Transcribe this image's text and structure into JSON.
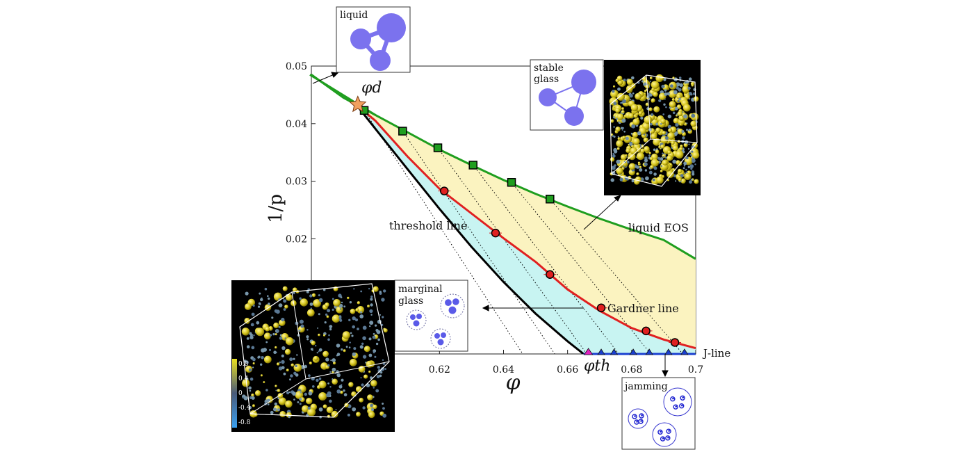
{
  "chart_data": {
    "type": "scatter",
    "title": "",
    "xlabel": "φ",
    "ylabel": "1/p",
    "xlim": [
      0.58,
      0.7
    ],
    "ylim": [
      0.0,
      0.05
    ],
    "x_ticks": [
      {
        "value": 0.62,
        "label": "0.62"
      },
      {
        "value": 0.64,
        "label": "0.64"
      },
      {
        "value": 0.66,
        "label": "0.66"
      },
      {
        "value": 0.68,
        "label": "0.68"
      },
      {
        "value": 0.7,
        "label": "0.7"
      }
    ],
    "y_ticks": [
      {
        "value": 0.02,
        "label": "0.02"
      },
      {
        "value": 0.03,
        "label": "0.03"
      },
      {
        "value": 0.04,
        "label": "0.04"
      },
      {
        "value": 0.05,
        "label": "0.05"
      }
    ],
    "lines": {
      "liquid_eos": [
        [
          0.58,
          0.0485
        ],
        [
          0.59,
          0.0445
        ],
        [
          0.6,
          0.0415
        ],
        [
          0.61,
          0.0385
        ],
        [
          0.62,
          0.0355
        ],
        [
          0.63,
          0.0328
        ],
        [
          0.64,
          0.0302
        ],
        [
          0.65,
          0.0278
        ],
        [
          0.66,
          0.0256
        ],
        [
          0.67,
          0.0235
        ],
        [
          0.68,
          0.0216
        ],
        [
          0.69,
          0.0198
        ],
        [
          0.7,
          0.0165
        ]
      ],
      "gardner_line": [
        [
          0.594,
          0.0433
        ],
        [
          0.6,
          0.0405
        ],
        [
          0.61,
          0.0343
        ],
        [
          0.62,
          0.0287
        ],
        [
          0.63,
          0.0244
        ],
        [
          0.64,
          0.0201
        ],
        [
          0.65,
          0.016
        ],
        [
          0.66,
          0.0112
        ],
        [
          0.67,
          0.0075
        ],
        [
          0.68,
          0.0045
        ],
        [
          0.69,
          0.0025
        ],
        [
          0.7,
          0.001
        ]
      ],
      "threshold_line": [
        [
          0.594,
          0.0433
        ],
        [
          0.6,
          0.0391
        ],
        [
          0.61,
          0.0321
        ],
        [
          0.62,
          0.0252
        ],
        [
          0.63,
          0.0186
        ],
        [
          0.64,
          0.0125
        ],
        [
          0.65,
          0.007
        ],
        [
          0.66,
          0.0022
        ],
        [
          0.665,
          0.0
        ]
      ],
      "j_line": [
        [
          0.665,
          0.0
        ],
        [
          0.7,
          0.0
        ]
      ]
    },
    "series": [
      {
        "name": "liquid EOS",
        "color": "#1f9e1f",
        "marker": "square",
        "x": [
          0.5965,
          0.6085,
          0.6195,
          0.6305,
          0.6425,
          0.6545
        ],
        "y": [
          0.0423,
          0.0387,
          0.0358,
          0.0328,
          0.0298,
          0.0269
        ]
      },
      {
        "name": "Gardner line",
        "color": "#e02020",
        "marker": "circle",
        "x": [
          0.6215,
          0.6375,
          0.6545,
          0.6705,
          0.6845,
          0.6935
        ],
        "y": [
          0.0283,
          0.021,
          0.0138,
          0.008,
          0.004,
          0.002
        ]
      },
      {
        "name": "J-line",
        "color": "#1a3fd0",
        "marker": "triangle",
        "x": [
          0.6705,
          0.6745,
          0.6805,
          0.6855,
          0.6915,
          0.6965
        ],
        "y": [
          0.0,
          0.0,
          0.0,
          0.0,
          0.0,
          0.0
        ]
      }
    ],
    "point_markers": {
      "phi_d": {
        "x": 0.5945,
        "y": 0.0433,
        "color": "#f0a060"
      },
      "phi_th": {
        "x": 0.6665,
        "y": 0.0,
        "color": "#e020c0"
      }
    },
    "annotations": {
      "phi_d": "φd",
      "phi_th": "φth",
      "threshold_line": "threshold line",
      "liquid_eos": "liquid EOS",
      "gardner_line": "Gardner line",
      "j_line": "J-line"
    },
    "grid": false,
    "legend": "none"
  },
  "insets": {
    "liquid": {
      "label": "liquid"
    },
    "stable_glass": {
      "label_line1": "stable",
      "label_line2": "glass"
    },
    "marginal_glass": {
      "label_line1": "marginal",
      "label_line2": "glass"
    },
    "jamming": {
      "label": "jamming"
    },
    "colorbar_ticks": [
      "0.8",
      "0.4",
      "0",
      "-0.4",
      "-0.8"
    ]
  },
  "colors": {
    "liquid_eos": "#1f9e1f",
    "gardner": "#e02020",
    "threshold": "#000000",
    "j_line": "#1a3fd0",
    "stable_region": "#fbf3c0",
    "marginal_region": "#c8f4f2",
    "particle": "#7b72ee",
    "jam_particle": "#1a1fd0"
  }
}
